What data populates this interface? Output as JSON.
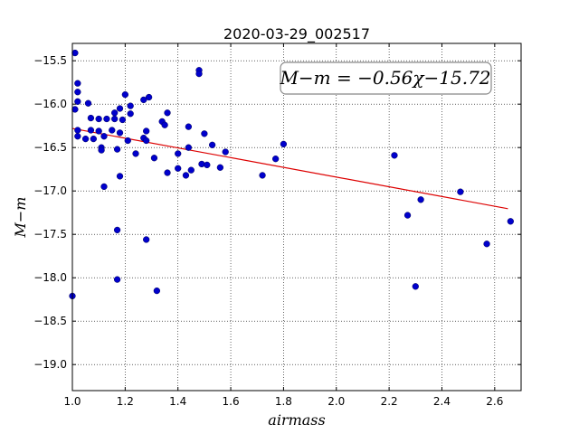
{
  "chart_data": {
    "type": "scatter",
    "title": "2020-03-29_002517",
    "xlabel": "airmass",
    "ylabel": "M−m",
    "xlim": [
      1.0,
      2.7
    ],
    "ylim": [
      -19.3,
      -15.3
    ],
    "y_inverted": true,
    "xticks": [
      "1.0",
      "1.2",
      "1.4",
      "1.6",
      "1.8",
      "2.0",
      "2.2",
      "2.4",
      "2.6"
    ],
    "yticks": [
      "−15.5",
      "−16.0",
      "−16.5",
      "−17.0",
      "−17.5",
      "−18.0",
      "−18.5",
      "−19.0"
    ],
    "grid": true,
    "annotation": "M−m = −0.56χ−15.72",
    "point_color": "#0000cc",
    "fit_color": "#dd0000",
    "fit": {
      "slope": -0.56,
      "intercept": -15.72,
      "x_range": [
        1.0,
        2.65
      ]
    },
    "points": [
      [
        1.0,
        -18.21
      ],
      [
        1.01,
        -15.41
      ],
      [
        1.01,
        -16.06
      ],
      [
        1.02,
        -15.76
      ],
      [
        1.02,
        -15.86
      ],
      [
        1.02,
        -15.97
      ],
      [
        1.02,
        -16.3
      ],
      [
        1.02,
        -16.37
      ],
      [
        1.05,
        -16.4
      ],
      [
        1.06,
        -15.99
      ],
      [
        1.07,
        -16.16
      ],
      [
        1.07,
        -16.3
      ],
      [
        1.08,
        -16.4
      ],
      [
        1.1,
        -16.17
      ],
      [
        1.1,
        -16.31
      ],
      [
        1.11,
        -16.5
      ],
      [
        1.11,
        -16.53
      ],
      [
        1.12,
        -16.95
      ],
      [
        1.12,
        -16.37
      ],
      [
        1.13,
        -16.17
      ],
      [
        1.15,
        -16.3
      ],
      [
        1.16,
        -16.1
      ],
      [
        1.16,
        -16.17
      ],
      [
        1.17,
        -17.45
      ],
      [
        1.17,
        -18.02
      ],
      [
        1.17,
        -16.52
      ],
      [
        1.18,
        -16.33
      ],
      [
        1.18,
        -16.05
      ],
      [
        1.18,
        -16.83
      ],
      [
        1.19,
        -16.18
      ],
      [
        1.2,
        -15.89
      ],
      [
        1.21,
        -16.42
      ],
      [
        1.22,
        -16.11
      ],
      [
        1.22,
        -16.02
      ],
      [
        1.24,
        -16.57
      ],
      [
        1.27,
        -15.95
      ],
      [
        1.27,
        -16.39
      ],
      [
        1.28,
        -16.42
      ],
      [
        1.28,
        -17.56
      ],
      [
        1.28,
        -16.31
      ],
      [
        1.29,
        -15.92
      ],
      [
        1.31,
        -16.62
      ],
      [
        1.32,
        -18.15
      ],
      [
        1.34,
        -16.2
      ],
      [
        1.35,
        -16.24
      ],
      [
        1.36,
        -16.1
      ],
      [
        1.36,
        -16.79
      ],
      [
        1.4,
        -16.57
      ],
      [
        1.4,
        -16.74
      ],
      [
        1.43,
        -16.82
      ],
      [
        1.44,
        -16.26
      ],
      [
        1.44,
        -16.5
      ],
      [
        1.45,
        -16.76
      ],
      [
        1.48,
        -15.61
      ],
      [
        1.48,
        -15.65
      ],
      [
        1.49,
        -16.69
      ],
      [
        1.5,
        -16.34
      ],
      [
        1.51,
        -16.7
      ],
      [
        1.53,
        -16.47
      ],
      [
        1.56,
        -16.73
      ],
      [
        1.58,
        -16.55
      ],
      [
        1.72,
        -16.82
      ],
      [
        1.77,
        -16.63
      ],
      [
        1.8,
        -16.46
      ],
      [
        2.22,
        -16.59
      ],
      [
        2.27,
        -17.28
      ],
      [
        2.3,
        -18.1
      ],
      [
        2.32,
        -17.1
      ],
      [
        2.47,
        -17.01
      ],
      [
        2.57,
        -17.61
      ],
      [
        2.66,
        -17.35
      ]
    ]
  }
}
